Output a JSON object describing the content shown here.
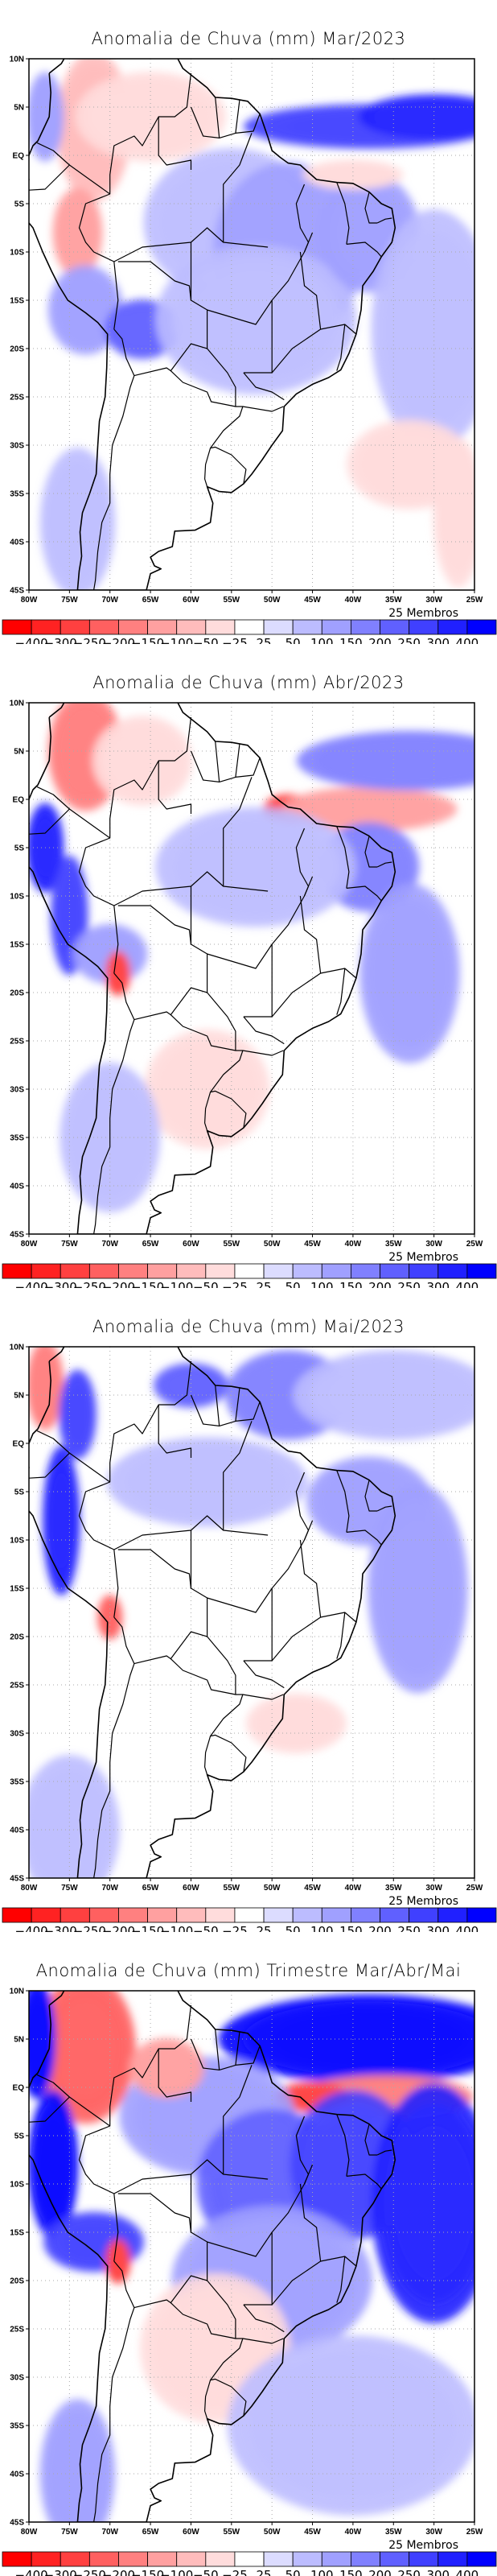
{
  "colorbar": {
    "levels": [
      "-400",
      "-300",
      "-250",
      "-200",
      "-150",
      "-100",
      "-50",
      "-25",
      "25",
      "50",
      "100",
      "150",
      "200",
      "250",
      "300",
      "400"
    ],
    "colors": [
      "#ff0000",
      "#ff2222",
      "#ff4040",
      "#ff6060",
      "#ff8080",
      "#ffa0a0",
      "#ffbcbc",
      "#ffdcdc",
      "#ffffff",
      "#dcdcff",
      "#bcbcff",
      "#a0a0ff",
      "#8080ff",
      "#6060ff",
      "#4040ff",
      "#2020ff",
      "#0000ff"
    ]
  },
  "members_label": "25 Membros",
  "axes": {
    "lon_ticks": [
      "80W",
      "75W",
      "70W",
      "65W",
      "60W",
      "55W",
      "50W",
      "45W",
      "40W",
      "35W",
      "30W",
      "25W"
    ],
    "lon_values": [
      -80,
      -75,
      -70,
      -65,
      -60,
      -55,
      -50,
      -45,
      -40,
      -35,
      -30,
      -25
    ],
    "lat_ticks": [
      "10N",
      "5N",
      "EQ",
      "5S",
      "10S",
      "15S",
      "20S",
      "25S",
      "30S",
      "35S",
      "40S",
      "45S"
    ],
    "lat_values": [
      10,
      5,
      0,
      -5,
      -10,
      -15,
      -20,
      -25,
      -30,
      -35,
      -40,
      -45
    ],
    "xlim": [
      -80,
      -25
    ],
    "ylim": [
      -45,
      10
    ]
  },
  "chart_data": [
    {
      "type": "heatmap",
      "title": "Anomalia de Chuva (mm) Mar/2023",
      "units": "mm",
      "xlabel": "",
      "ylabel": "",
      "blobs": [
        {
          "lon": -72,
          "lat": 3,
          "rlon": 3,
          "rlat": 5,
          "value": -100
        },
        {
          "lon": -74,
          "lat": -8,
          "rlon": 2,
          "rlat": 3,
          "value": -150
        },
        {
          "lon": -65,
          "lat": 4,
          "rlon": 6,
          "rlat": 3,
          "value": -50
        },
        {
          "lon": -78,
          "lat": 4,
          "rlon": 1.5,
          "rlat": 3,
          "value": 100
        },
        {
          "lon": -73,
          "lat": -16,
          "rlon": 3,
          "rlat": 3,
          "value": 100
        },
        {
          "lon": -66,
          "lat": -18,
          "rlon": 3,
          "rlat": 2,
          "value": 200
        },
        {
          "lon": -55,
          "lat": -7,
          "rlon": 7,
          "rlat": 5,
          "value": 50
        },
        {
          "lon": -48,
          "lat": -10,
          "rlon": 6,
          "rlat": 6,
          "value": 100
        },
        {
          "lon": -52,
          "lat": -17,
          "rlon": 8,
          "rlat": 5,
          "value": 50
        },
        {
          "lon": -38,
          "lat": -8,
          "rlon": 4,
          "rlat": 4,
          "value": 100
        },
        {
          "lon": -38,
          "lat": 3,
          "rlon": 10,
          "rlat": 1.5,
          "value": 250
        },
        {
          "lon": -30,
          "lat": 4,
          "rlon": 6,
          "rlat": 1.5,
          "value": 300
        },
        {
          "lon": -40,
          "lat": -2,
          "rlon": 4,
          "rlat": 1,
          "value": -50
        },
        {
          "lon": -30,
          "lat": -18,
          "rlon": 5,
          "rlat": 8,
          "value": 50
        },
        {
          "lon": -33,
          "lat": -32,
          "rlon": 5,
          "rlat": 3,
          "value": -50
        },
        {
          "lon": -27,
          "lat": -37,
          "rlon": 2,
          "rlat": 5,
          "value": -50
        },
        {
          "lon": -74,
          "lat": -38,
          "rlon": 3,
          "rlat": 5,
          "value": 50
        }
      ]
    },
    {
      "type": "heatmap",
      "title": "Anomalia de Chuva (mm) Abr/2023",
      "units": "mm",
      "xlabel": "",
      "ylabel": "",
      "blobs": [
        {
          "lon": -73,
          "lat": 5,
          "rlon": 3,
          "rlat": 4,
          "value": -200
        },
        {
          "lon": -66,
          "lat": 4,
          "rlon": 4,
          "rlat": 3,
          "value": -50
        },
        {
          "lon": -78,
          "lat": -5,
          "rlon": 1.5,
          "rlat": 3,
          "value": 300
        },
        {
          "lon": -75,
          "lat": -12,
          "rlon": 1.5,
          "rlat": 4,
          "value": 250
        },
        {
          "lon": -70,
          "lat": -16,
          "rlon": 3,
          "rlat": 2,
          "value": 100
        },
        {
          "lon": -69,
          "lat": -18,
          "rlon": 1,
          "rlat": 1.5,
          "value": -300
        },
        {
          "lon": -48,
          "lat": -1,
          "rlon": 2,
          "rlat": 1,
          "value": -300
        },
        {
          "lon": -38,
          "lat": -1,
          "rlon": 7,
          "rlat": 1.5,
          "value": -150
        },
        {
          "lon": -33,
          "lat": 4,
          "rlon": 9,
          "rlat": 2,
          "value": 150
        },
        {
          "lon": -38,
          "lat": -7,
          "rlon": 4,
          "rlat": 3,
          "value": 150
        },
        {
          "lon": -52,
          "lat": -7,
          "rlon": 8,
          "rlat": 4,
          "value": 50
        },
        {
          "lon": -33,
          "lat": -18,
          "rlon": 4,
          "rlat": 6,
          "value": 100
        },
        {
          "lon": -58,
          "lat": -30,
          "rlon": 5,
          "rlat": 4,
          "value": -50
        },
        {
          "lon": -70,
          "lat": -35,
          "rlon": 4,
          "rlat": 5,
          "value": 50
        }
      ]
    },
    {
      "type": "heatmap",
      "title": "Anomalia de Chuva (mm) Mai/2023",
      "units": "mm",
      "xlabel": "",
      "ylabel": "",
      "blobs": [
        {
          "lon": -78,
          "lat": 6,
          "rlon": 1.5,
          "rlat": 3,
          "value": -200
        },
        {
          "lon": -76,
          "lat": -8,
          "rlon": 1.5,
          "rlat": 5,
          "value": 300
        },
        {
          "lon": -74,
          "lat": 3,
          "rlon": 1.5,
          "rlat": 3,
          "value": 250
        },
        {
          "lon": -60,
          "lat": 6,
          "rlon": 3,
          "rlat": 1.5,
          "value": 200
        },
        {
          "lon": -48,
          "lat": 5,
          "rlon": 5,
          "rlat": 3,
          "value": 150
        },
        {
          "lon": -35,
          "lat": 5,
          "rlon": 8,
          "rlat": 3,
          "value": 50
        },
        {
          "lon": -38,
          "lat": -6,
          "rlon": 5,
          "rlat": 3,
          "value": 100
        },
        {
          "lon": -58,
          "lat": -4,
          "rlon": 8,
          "rlat": 3,
          "value": 50
        },
        {
          "lon": -32,
          "lat": -15,
          "rlon": 4,
          "rlat": 7,
          "value": 100
        },
        {
          "lon": -70,
          "lat": -18,
          "rlon": 1,
          "rlat": 1.5,
          "value": -250
        },
        {
          "lon": -47,
          "lat": -29,
          "rlon": 4,
          "rlat": 2,
          "value": -50
        },
        {
          "lon": -75,
          "lat": -40,
          "rlon": 4,
          "rlat": 5,
          "value": 50
        }
      ]
    },
    {
      "type": "heatmap",
      "title": "Anomalia de Chuva (mm) Trimestre Mar/Abr/Mai",
      "units": "mm",
      "xlabel": "",
      "ylabel": "",
      "blobs": [
        {
          "lon": -73,
          "lat": 4,
          "rlon": 4,
          "rlat": 5,
          "value": -250
        },
        {
          "lon": -79,
          "lat": 5,
          "rlon": 1.5,
          "rlat": 4,
          "value": 400
        },
        {
          "lon": -77,
          "lat": -8,
          "rlon": 2,
          "rlat": 5,
          "value": 400
        },
        {
          "lon": -72,
          "lat": -16,
          "rlon": 4,
          "rlat": 2,
          "value": 250
        },
        {
          "lon": -69,
          "lat": -18,
          "rlon": 1,
          "rlat": 1.5,
          "value": -300
        },
        {
          "lon": -38,
          "lat": 5,
          "rlon": 12,
          "rlat": 3,
          "value": 400
        },
        {
          "lon": -36,
          "lat": -1,
          "rlon": 7,
          "rlat": 1.5,
          "value": -200
        },
        {
          "lon": -45,
          "lat": -1,
          "rlon": 3,
          "rlat": 1,
          "value": -300
        },
        {
          "lon": -58,
          "lat": -3,
          "rlon": 7,
          "rlat": 4,
          "value": 100
        },
        {
          "lon": -50,
          "lat": -10,
          "rlon": 6,
          "rlat": 5,
          "value": 200
        },
        {
          "lon": -40,
          "lat": -8,
          "rlon": 5,
          "rlat": 5,
          "value": 250
        },
        {
          "lon": -30,
          "lat": -12,
          "rlon": 5,
          "rlat": 8,
          "value": 300
        },
        {
          "lon": -50,
          "lat": -20,
          "rlon": 8,
          "rlat": 5,
          "value": 100
        },
        {
          "lon": -63,
          "lat": 2,
          "rlon": 3,
          "rlat": 2,
          "value": -150
        },
        {
          "lon": -57,
          "lat": -27,
          "rlon": 6,
          "rlat": 5,
          "value": -50
        },
        {
          "lon": -40,
          "lat": -35,
          "rlon": 10,
          "rlat": 6,
          "value": 50
        },
        {
          "lon": -74,
          "lat": -40,
          "rlon": 3,
          "rlat": 5,
          "value": 100
        }
      ]
    }
  ]
}
